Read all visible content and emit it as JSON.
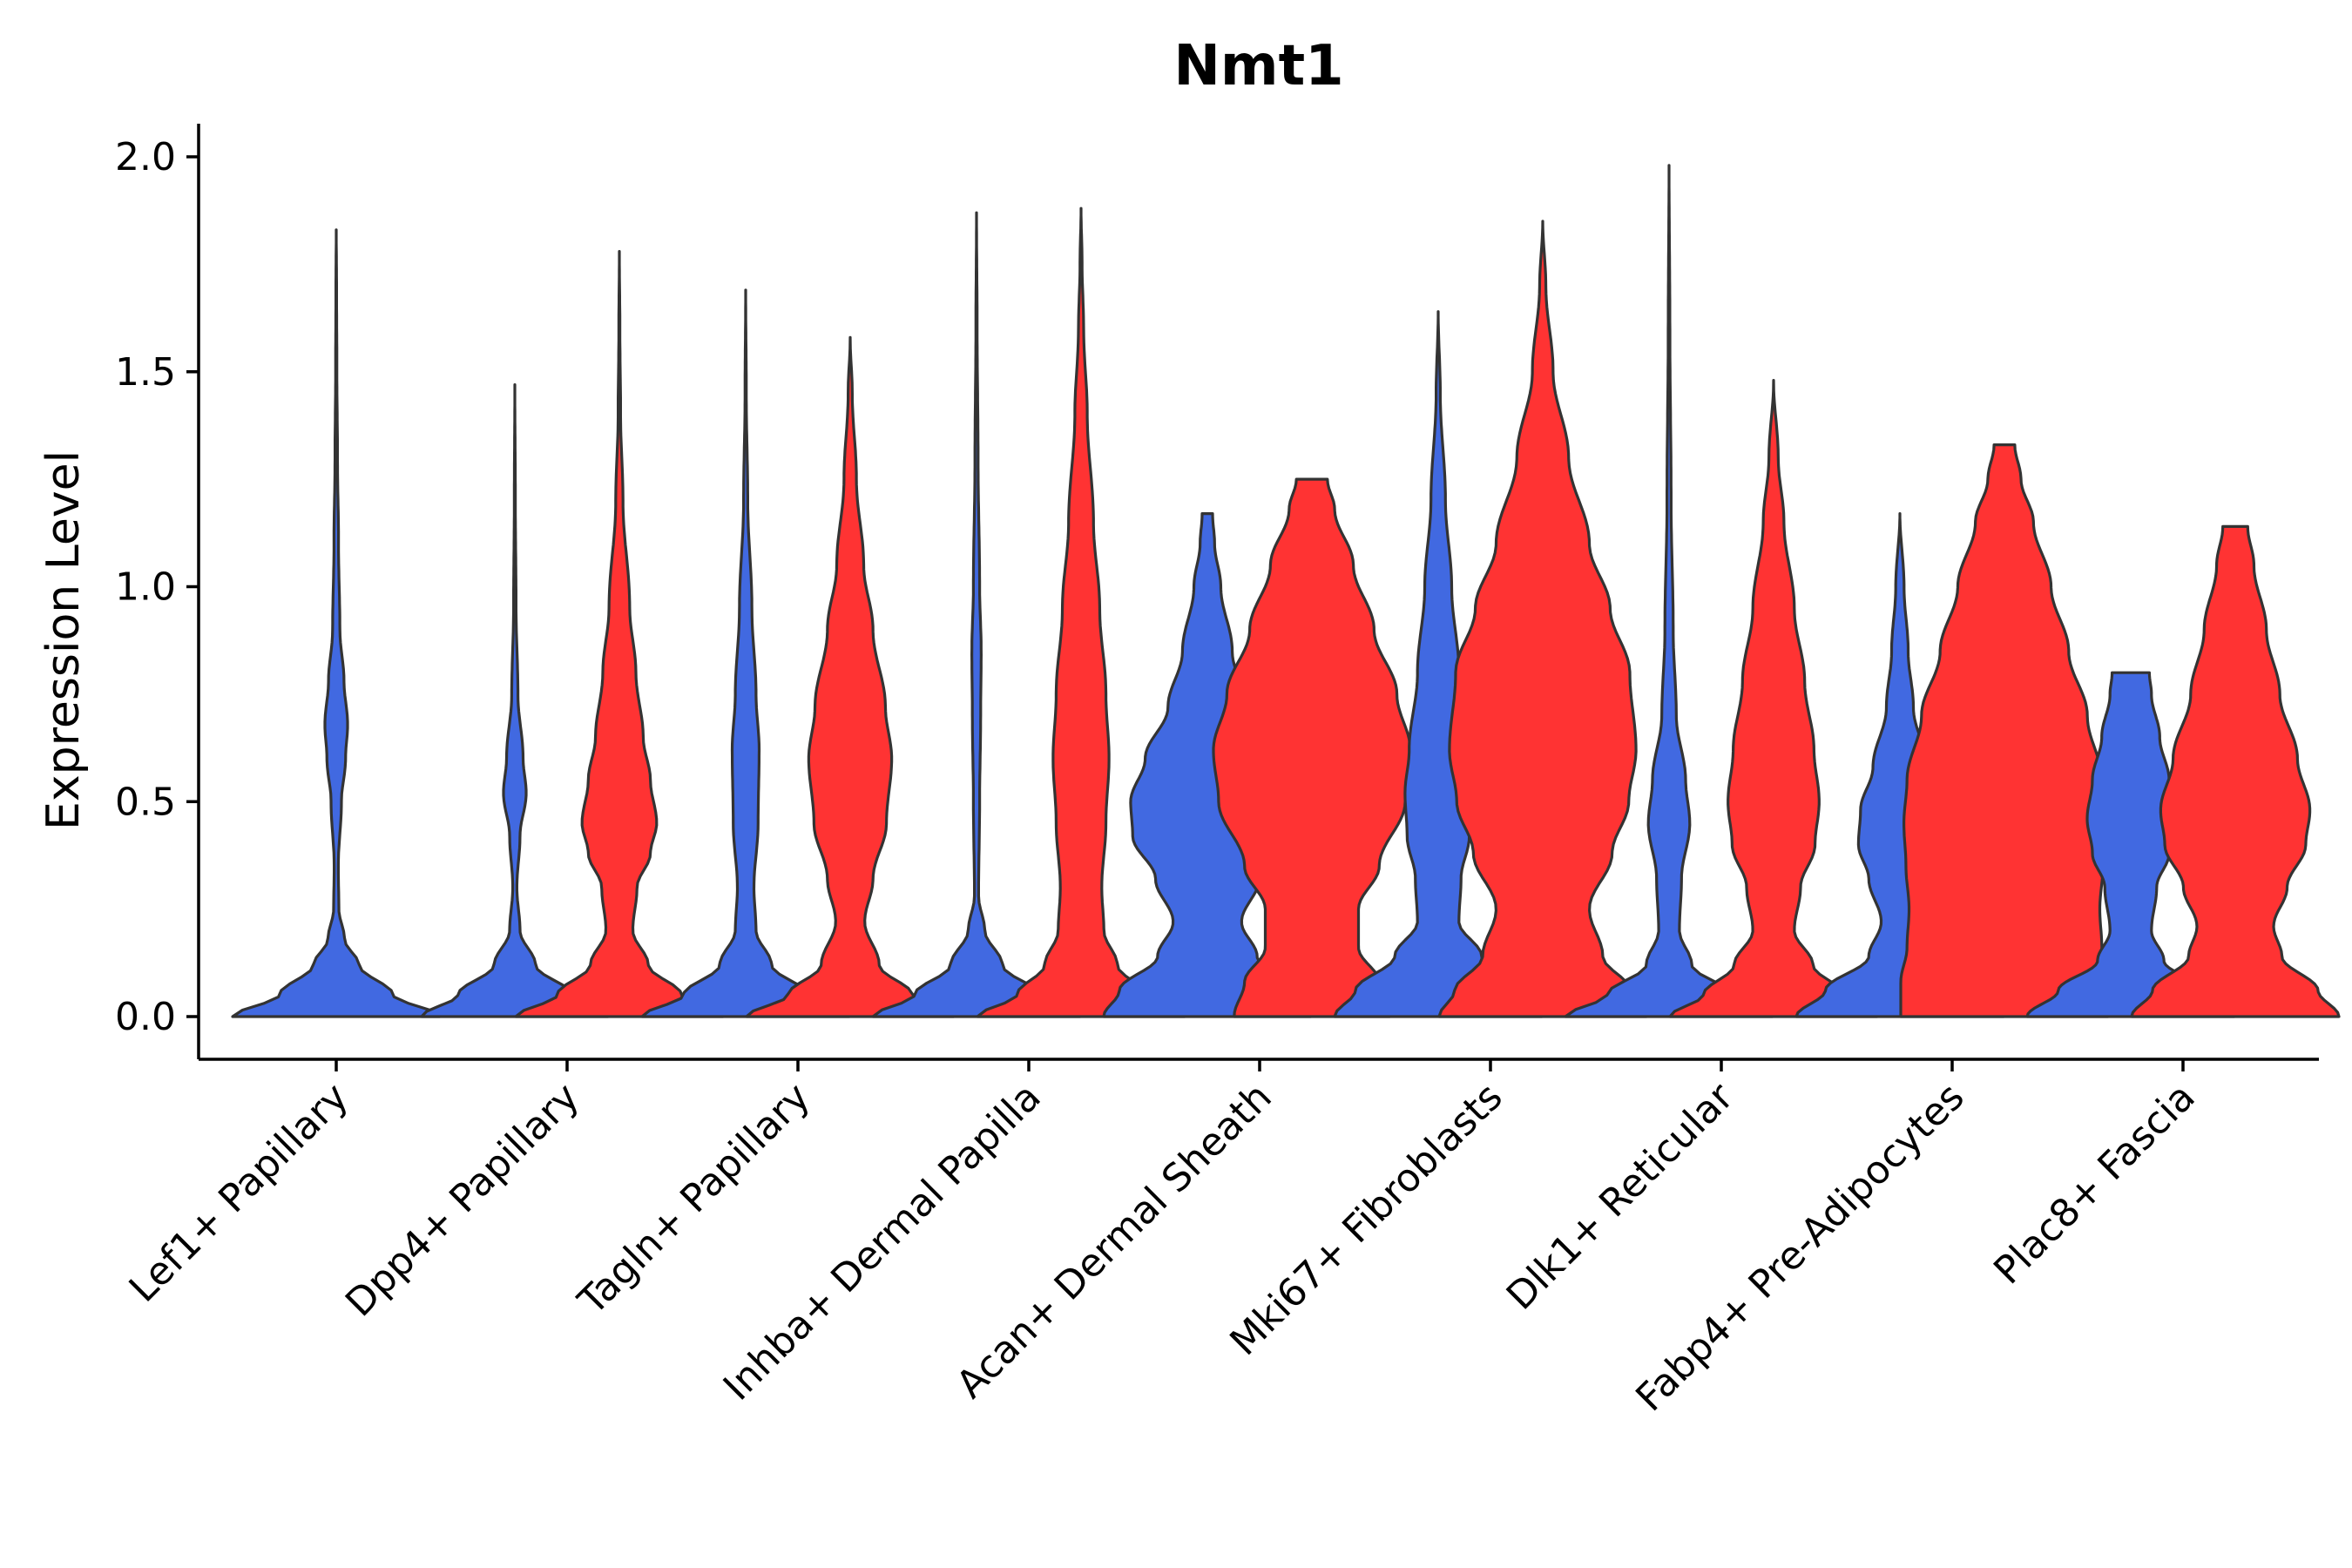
{
  "chart_data": {
    "type": "violin",
    "title": "Nmt1",
    "xlabel": "",
    "ylabel": "Expression Level",
    "ylim": [
      -0.1,
      2.08
    ],
    "yticks": [
      0.0,
      0.5,
      1.0,
      1.5,
      2.0
    ],
    "ytick_labels": [
      "0.0",
      "0.5",
      "1.0",
      "1.5",
      "2.0"
    ],
    "categories": [
      "Lef1+ Papillary",
      "Dpp4+ Papillary",
      "Tagln+ Papillary",
      "Inhba+ Dermal Papilla",
      "Acan+ Dermal Sheath",
      "Mki67+ Fibroblasts",
      "Dlk1+ Reticular",
      "Fabp4+ Pre-Adipocytes",
      "Plac8+ Fascia"
    ],
    "split_colors": {
      "left": "#4169E1",
      "right": "#FF3333"
    },
    "series": [
      {
        "name": "Lef1+ Papillary",
        "left": {
          "color": "#4169E1",
          "max": 1.83,
          "profile": [
            [
              0,
              1.0
            ],
            [
              0.05,
              0.55
            ],
            [
              0.12,
              0.22
            ],
            [
              0.18,
              0.08
            ],
            [
              0.25,
              0.025
            ],
            [
              0.35,
              0.02
            ],
            [
              0.5,
              0.05
            ],
            [
              0.6,
              0.09
            ],
            [
              0.68,
              0.11
            ],
            [
              0.78,
              0.075
            ],
            [
              0.9,
              0.035
            ],
            [
              1.1,
              0.022
            ],
            [
              1.3,
              0.012
            ],
            [
              1.5,
              0.006
            ],
            [
              1.7,
              0.003
            ],
            [
              1.83,
              0
            ]
          ]
        },
        "right": null
      },
      {
        "name": "Dpp4+ Papillary",
        "left": {
          "color": "#4169E1",
          "max": 1.47,
          "profile": [
            [
              0,
              0.9
            ],
            [
              0.05,
              0.55
            ],
            [
              0.12,
              0.2
            ],
            [
              0.2,
              0.05
            ],
            [
              0.3,
              0.02
            ],
            [
              0.42,
              0.05
            ],
            [
              0.52,
              0.11
            ],
            [
              0.6,
              0.08
            ],
            [
              0.75,
              0.03
            ],
            [
              0.95,
              0.012
            ],
            [
              1.2,
              0.005
            ],
            [
              1.47,
              0
            ]
          ]
        },
        "right": {
          "color": "#FF3333",
          "max": 1.78,
          "profile": [
            [
              0,
              1.0
            ],
            [
              0.05,
              0.6
            ],
            [
              0.12,
              0.28
            ],
            [
              0.2,
              0.13
            ],
            [
              0.3,
              0.17
            ],
            [
              0.38,
              0.3
            ],
            [
              0.45,
              0.36
            ],
            [
              0.55,
              0.3
            ],
            [
              0.65,
              0.23
            ],
            [
              0.8,
              0.16
            ],
            [
              0.95,
              0.1
            ],
            [
              1.2,
              0.035
            ],
            [
              1.4,
              0.012
            ],
            [
              1.6,
              0.005
            ],
            [
              1.78,
              0
            ]
          ]
        }
      },
      {
        "name": "Tagln+ Papillary",
        "left": {
          "color": "#4169E1",
          "max": 1.69,
          "profile": [
            [
              0,
              1.0
            ],
            [
              0.05,
              0.6
            ],
            [
              0.12,
              0.25
            ],
            [
              0.2,
              0.1
            ],
            [
              0.3,
              0.08
            ],
            [
              0.45,
              0.12
            ],
            [
              0.62,
              0.13
            ],
            [
              0.75,
              0.1
            ],
            [
              0.95,
              0.06
            ],
            [
              1.2,
              0.02
            ],
            [
              1.45,
              0.006
            ],
            [
              1.69,
              0
            ]
          ]
        },
        "right": {
          "color": "#FF3333",
          "max": 1.58,
          "profile": [
            [
              0,
              1.0
            ],
            [
              0.05,
              0.6
            ],
            [
              0.12,
              0.28
            ],
            [
              0.22,
              0.14
            ],
            [
              0.32,
              0.22
            ],
            [
              0.45,
              0.35
            ],
            [
              0.6,
              0.4
            ],
            [
              0.72,
              0.34
            ],
            [
              0.9,
              0.22
            ],
            [
              1.05,
              0.13
            ],
            [
              1.25,
              0.06
            ],
            [
              1.45,
              0.02
            ],
            [
              1.58,
              0
            ]
          ]
        }
      },
      {
        "name": "Inhba+ Dermal Papilla",
        "left": {
          "color": "#4169E1",
          "max": 1.87,
          "profile": [
            [
              0,
              1.0
            ],
            [
              0.05,
              0.6
            ],
            [
              0.12,
              0.25
            ],
            [
              0.2,
              0.08
            ],
            [
              0.28,
              0.02
            ],
            [
              0.5,
              0.03
            ],
            [
              0.7,
              0.04
            ],
            [
              0.85,
              0.045
            ],
            [
              1.0,
              0.03
            ],
            [
              1.3,
              0.015
            ],
            [
              1.6,
              0.006
            ],
            [
              1.87,
              0
            ]
          ]
        },
        "right": {
          "color": "#FF3333",
          "max": 1.88,
          "profile": [
            [
              0,
              1.0
            ],
            [
              0.05,
              0.62
            ],
            [
              0.12,
              0.35
            ],
            [
              0.2,
              0.22
            ],
            [
              0.3,
              0.2
            ],
            [
              0.45,
              0.24
            ],
            [
              0.6,
              0.27
            ],
            [
              0.75,
              0.24
            ],
            [
              0.95,
              0.18
            ],
            [
              1.15,
              0.12
            ],
            [
              1.4,
              0.06
            ],
            [
              1.6,
              0.025
            ],
            [
              1.75,
              0.01
            ],
            [
              1.88,
              0
            ]
          ]
        }
      },
      {
        "name": "Acan+ Dermal Sheath",
        "left": {
          "color": "#4169E1",
          "max": 1.17,
          "profile": [
            [
              0,
              1.0
            ],
            [
              0.06,
              0.85
            ],
            [
              0.14,
              0.48
            ],
            [
              0.22,
              0.33
            ],
            [
              0.32,
              0.5
            ],
            [
              0.42,
              0.72
            ],
            [
              0.5,
              0.74
            ],
            [
              0.6,
              0.6
            ],
            [
              0.72,
              0.38
            ],
            [
              0.85,
              0.24
            ],
            [
              1.0,
              0.13
            ],
            [
              1.1,
              0.07
            ],
            [
              1.17,
              0.05
            ]
          ]
        },
        "right": {
          "color": "#FF3333",
          "max": 1.25,
          "profile": [
            [
              0,
              0.75
            ],
            [
              0.08,
              0.65
            ],
            [
              0.16,
              0.45
            ],
            [
              0.25,
              0.45
            ],
            [
              0.35,
              0.65
            ],
            [
              0.5,
              0.9
            ],
            [
              0.62,
              0.95
            ],
            [
              0.75,
              0.82
            ],
            [
              0.9,
              0.6
            ],
            [
              1.05,
              0.4
            ],
            [
              1.18,
              0.22
            ],
            [
              1.25,
              0.15
            ]
          ]
        }
      },
      {
        "name": "Mki67+ Fibroblasts",
        "left": {
          "color": "#4169E1",
          "max": 1.64,
          "profile": [
            [
              0,
              1.0
            ],
            [
              0.06,
              0.8
            ],
            [
              0.14,
              0.42
            ],
            [
              0.22,
              0.2
            ],
            [
              0.32,
              0.22
            ],
            [
              0.42,
              0.3
            ],
            [
              0.52,
              0.32
            ],
            [
              0.62,
              0.28
            ],
            [
              0.8,
              0.2
            ],
            [
              1.0,
              0.13
            ],
            [
              1.2,
              0.07
            ],
            [
              1.45,
              0.02
            ],
            [
              1.64,
              0
            ]
          ]
        },
        "right": {
          "color": "#FF3333",
          "max": 1.85,
          "profile": [
            [
              0,
              1.0
            ],
            [
              0.06,
              0.85
            ],
            [
              0.14,
              0.58
            ],
            [
              0.25,
              0.45
            ],
            [
              0.38,
              0.67
            ],
            [
              0.5,
              0.83
            ],
            [
              0.62,
              0.9
            ],
            [
              0.8,
              0.84
            ],
            [
              0.95,
              0.65
            ],
            [
              1.1,
              0.45
            ],
            [
              1.3,
              0.25
            ],
            [
              1.5,
              0.1
            ],
            [
              1.7,
              0.03
            ],
            [
              1.85,
              0
            ]
          ]
        }
      },
      {
        "name": "Dlk1+ Reticular",
        "left": {
          "color": "#4169E1",
          "max": 1.98,
          "profile": [
            [
              0,
              1.0
            ],
            [
              0.05,
              0.6
            ],
            [
              0.12,
              0.22
            ],
            [
              0.2,
              0.1
            ],
            [
              0.32,
              0.12
            ],
            [
              0.45,
              0.2
            ],
            [
              0.55,
              0.16
            ],
            [
              0.7,
              0.07
            ],
            [
              0.9,
              0.04
            ],
            [
              1.2,
              0.02
            ],
            [
              1.6,
              0.008
            ],
            [
              1.98,
              0
            ]
          ]
        },
        "right": {
          "color": "#FF3333",
          "max": 1.48,
          "profile": [
            [
              0,
              1.0
            ],
            [
              0.05,
              0.68
            ],
            [
              0.12,
              0.38
            ],
            [
              0.2,
              0.2
            ],
            [
              0.3,
              0.26
            ],
            [
              0.4,
              0.4
            ],
            [
              0.5,
              0.44
            ],
            [
              0.62,
              0.39
            ],
            [
              0.78,
              0.3
            ],
            [
              0.95,
              0.2
            ],
            [
              1.15,
              0.1
            ],
            [
              1.3,
              0.045
            ],
            [
              1.48,
              0
            ]
          ]
        }
      },
      {
        "name": "Fabp4+ Pre-Adipocytes",
        "left": {
          "color": "#4169E1",
          "max": 1.17,
          "profile": [
            [
              0,
              1.0
            ],
            [
              0.06,
              0.72
            ],
            [
              0.14,
              0.3
            ],
            [
              0.22,
              0.18
            ],
            [
              0.32,
              0.3
            ],
            [
              0.4,
              0.4
            ],
            [
              0.48,
              0.38
            ],
            [
              0.58,
              0.26
            ],
            [
              0.72,
              0.13
            ],
            [
              0.85,
              0.08
            ],
            [
              1.0,
              0.04
            ],
            [
              1.17,
              0
            ]
          ]
        },
        "right": {
          "color": "#FF3333",
          "max": 1.33,
          "profile": [
            [
              0,
              1.0
            ],
            [
              0.08,
              1.0
            ],
            [
              0.16,
              0.94
            ],
            [
              0.25,
              0.92
            ],
            [
              0.35,
              0.95
            ],
            [
              0.45,
              0.97
            ],
            [
              0.55,
              0.94
            ],
            [
              0.7,
              0.8
            ],
            [
              0.85,
              0.62
            ],
            [
              1.0,
              0.45
            ],
            [
              1.15,
              0.28
            ],
            [
              1.25,
              0.16
            ],
            [
              1.33,
              0.1
            ]
          ]
        }
      },
      {
        "name": "Plac8+ Fascia",
        "left": {
          "color": "#4169E1",
          "max": 0.8,
          "profile": [
            [
              0,
              1.0
            ],
            [
              0.06,
              0.7
            ],
            [
              0.13,
              0.32
            ],
            [
              0.2,
              0.2
            ],
            [
              0.3,
              0.25
            ],
            [
              0.38,
              0.37
            ],
            [
              0.46,
              0.42
            ],
            [
              0.55,
              0.37
            ],
            [
              0.65,
              0.28
            ],
            [
              0.75,
              0.2
            ],
            [
              0.8,
              0.18
            ]
          ]
        },
        "right": {
          "color": "#FF3333",
          "max": 1.14,
          "profile": [
            [
              0,
              1.0
            ],
            [
              0.06,
              0.8
            ],
            [
              0.14,
              0.45
            ],
            [
              0.21,
              0.37
            ],
            [
              0.3,
              0.5
            ],
            [
              0.4,
              0.68
            ],
            [
              0.48,
              0.72
            ],
            [
              0.6,
              0.6
            ],
            [
              0.75,
              0.43
            ],
            [
              0.9,
              0.3
            ],
            [
              1.05,
              0.18
            ],
            [
              1.14,
              0.12
            ]
          ]
        }
      }
    ]
  }
}
